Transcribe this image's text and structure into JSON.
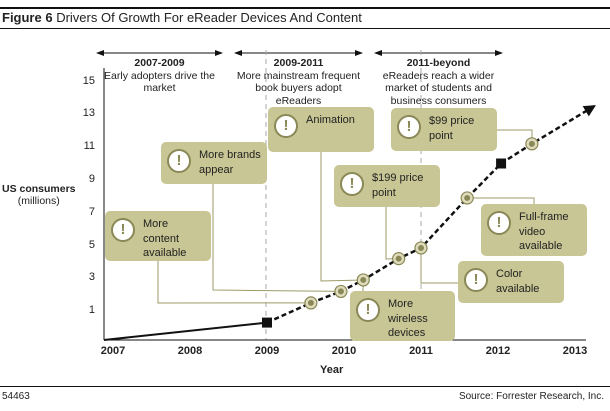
{
  "title": {
    "figure": "Figure 6",
    "text": "Drivers Of Growth For eReader Devices And Content"
  },
  "periods": [
    {
      "heading": "2007-2009",
      "lines": [
        "Early adopters drive the",
        "market"
      ]
    },
    {
      "heading": "2009-2011",
      "lines": [
        "More mainstream frequent",
        "book buyers adopt",
        "eReaders"
      ]
    },
    {
      "heading": "2011-beyond",
      "lines": [
        "eReaders reach a wider",
        "market of students and",
        "business consumers"
      ]
    }
  ],
  "callouts": [
    {
      "id": "content",
      "lines": [
        "More",
        "content",
        "available"
      ]
    },
    {
      "id": "brands",
      "lines": [
        "More brands",
        "appear"
      ]
    },
    {
      "id": "animation",
      "lines": [
        "Animation"
      ]
    },
    {
      "id": "price99",
      "lines": [
        "$99 price",
        "point"
      ]
    },
    {
      "id": "price199",
      "lines": [
        "$199 price",
        "point"
      ]
    },
    {
      "id": "video",
      "lines": [
        "Full-frame",
        "video",
        "available"
      ]
    },
    {
      "id": "color",
      "lines": [
        "Color",
        "available"
      ]
    },
    {
      "id": "wireless",
      "lines": [
        "More",
        "wireless",
        "devices"
      ]
    }
  ],
  "callout_icon": "exclamation-circle-icon",
  "colors": {
    "callout": "#c8c694",
    "accent": "#8a8856",
    "line": "#111111"
  },
  "chart_data": {
    "type": "line",
    "xlabel": "Year",
    "ylabel": [
      "US consumers",
      "(millions)"
    ],
    "x_ticks": [
      "2007",
      "2008",
      "2009",
      "2010",
      "2011",
      "2012",
      "2013"
    ],
    "y_ticks": [
      "1",
      "3",
      "5",
      "7",
      "9",
      "11",
      "13",
      "15"
    ],
    "xlim": [
      2007,
      2013
    ],
    "ylim": [
      0,
      15
    ],
    "grid": false,
    "period_dividers": [
      2009,
      2011
    ],
    "series": [
      {
        "style": "solid",
        "points": [
          [
            2007,
            0
          ],
          [
            2009,
            0.3
          ]
        ]
      },
      {
        "style": "dashed",
        "points": [
          [
            2009,
            0.3
          ],
          [
            2009.57,
            1.5
          ],
          [
            2009.96,
            2.2
          ],
          [
            2010.25,
            2.9
          ],
          [
            2010.71,
            4.2
          ],
          [
            2011.0,
            4.85
          ],
          [
            2011.6,
            7.9
          ],
          [
            2012.04,
            10.0
          ],
          [
            2012.44,
            11.2
          ],
          [
            2013.25,
            13.5
          ]
        ]
      }
    ],
    "square_markers": [
      [
        2009,
        0.3
      ],
      [
        2012.04,
        10.0
      ]
    ],
    "event_markers": [
      {
        "callout": "content",
        "point": [
          2009.57,
          1.5
        ]
      },
      {
        "callout": "brands",
        "point": [
          2009.96,
          2.2
        ]
      },
      {
        "callout": "animation",
        "point": [
          2010.25,
          2.9
        ]
      },
      {
        "callout": "wireless",
        "point": [
          2010.25,
          2.9
        ]
      },
      {
        "callout": "price199",
        "point": [
          2010.71,
          4.2
        ]
      },
      {
        "callout": "color",
        "point": [
          2011.0,
          4.85
        ]
      },
      {
        "callout": "video",
        "point": [
          2011.6,
          7.9
        ]
      },
      {
        "callout": "price99",
        "point": [
          2012.44,
          11.2
        ]
      }
    ]
  },
  "footer": {
    "id": "54463",
    "source": "Source: Forrester Research, Inc."
  }
}
